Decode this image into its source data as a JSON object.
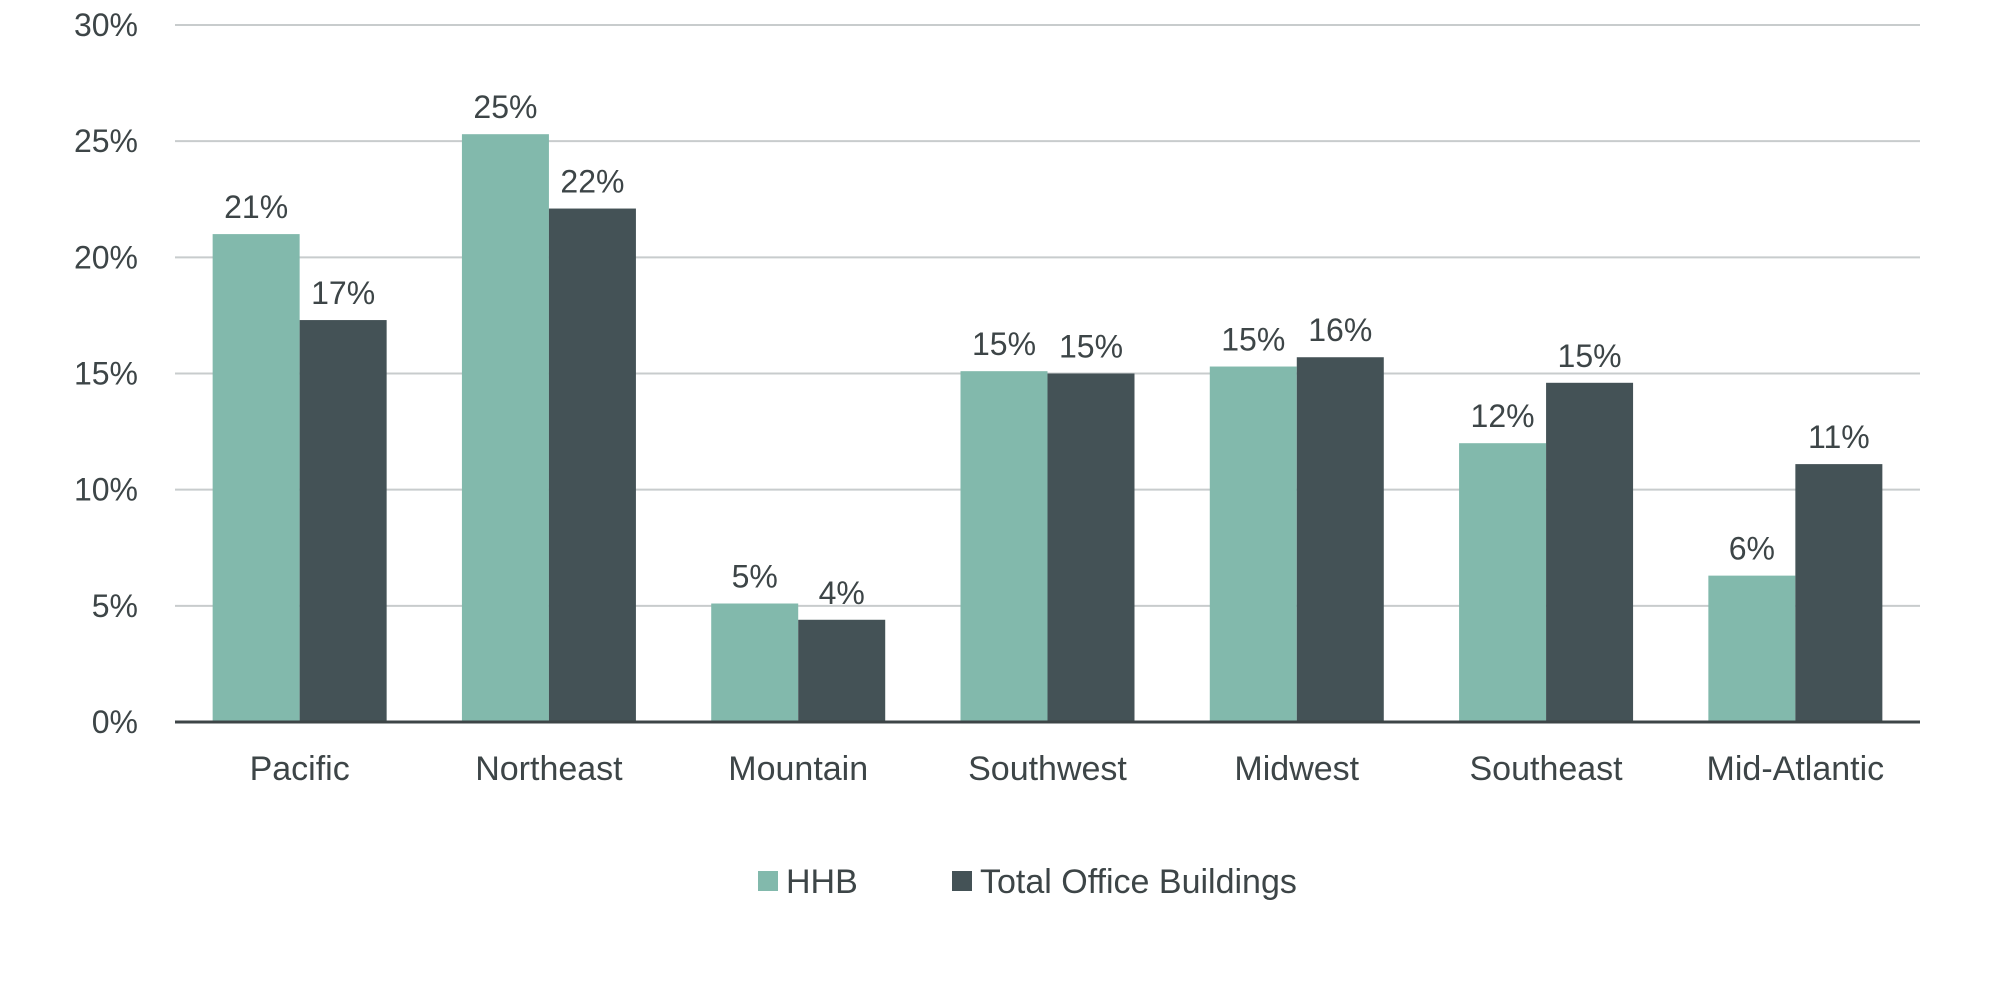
{
  "chart_data": {
    "type": "bar",
    "title": "",
    "xlabel": "",
    "ylabel": "",
    "categories": [
      "Pacific",
      "Northeast",
      "Mountain",
      "Southwest",
      "Midwest",
      "Southeast",
      "Mid-Atlantic"
    ],
    "series": [
      {
        "name": "HHB",
        "color": "#82b9ac",
        "values": [
          21,
          25.3,
          5.1,
          15.1,
          15.3,
          12,
          6.3
        ],
        "labels": [
          "21%",
          "25%",
          "5%",
          "15%",
          "15%",
          "12%",
          "6%"
        ]
      },
      {
        "name": "Total Office Buildings",
        "color": "#445256",
        "values": [
          17.3,
          22.1,
          4.4,
          15,
          15.7,
          14.6,
          11.1
        ],
        "labels": [
          "17%",
          "22%",
          "4%",
          "15%",
          "16%",
          "15%",
          "11%"
        ]
      }
    ],
    "ylim": [
      0,
      30
    ],
    "yticks": [
      0,
      5,
      10,
      15,
      20,
      25,
      30
    ],
    "ytick_labels": [
      "0%",
      "5%",
      "10%",
      "15%",
      "20%",
      "25%",
      "30%"
    ],
    "grid": true,
    "legend_position": "bottom-center",
    "gridline_color": "#c8cccd",
    "axis_color": "#3d4547"
  }
}
